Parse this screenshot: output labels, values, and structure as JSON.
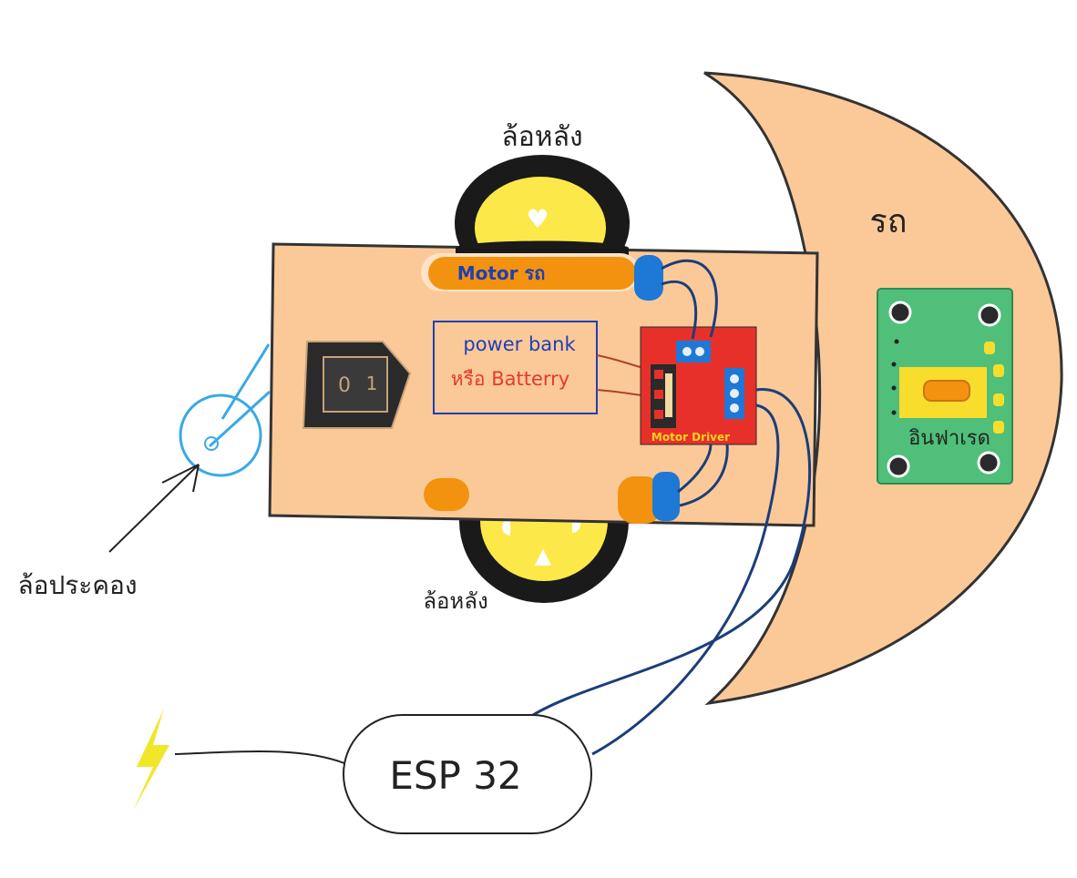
{
  "labels": {
    "rear_wheel_top": "ล้อหลัง",
    "rear_wheel_bottom": "ล้อหลัง",
    "caster_wheel": "ล้อประคอง",
    "car": "รถ",
    "motor": "Motor รถ",
    "power_line1": "power bank",
    "power_line2": "หรือ Batterry",
    "motor_driver": "Motor Driver",
    "infrared": "อินฟาเรด",
    "esp32": "ESP 32"
  },
  "colors": {
    "chassis": "#fbc998",
    "moon": "#fbc998",
    "wheel_tire": "#1a1a1a",
    "wheel_hub": "#fde84a",
    "motor": "#f3920f",
    "connector": "#1e78d6",
    "driver_board": "#e8302a",
    "driver_label": "#f7d21c",
    "sensor_board": "#4fbf7a",
    "sensor_pad": "#f8dd2c",
    "wire": "#1b3e7a",
    "power_box_border": "#1f3fb4",
    "power_text_blue": "#1f3fb4",
    "power_text_red": "#e23b2d",
    "caster": "#3aa8e6",
    "bolt": "#f2e62a"
  },
  "icons": {
    "switch": "power-switch-icon",
    "bolt": "lightning-bolt-icon"
  }
}
